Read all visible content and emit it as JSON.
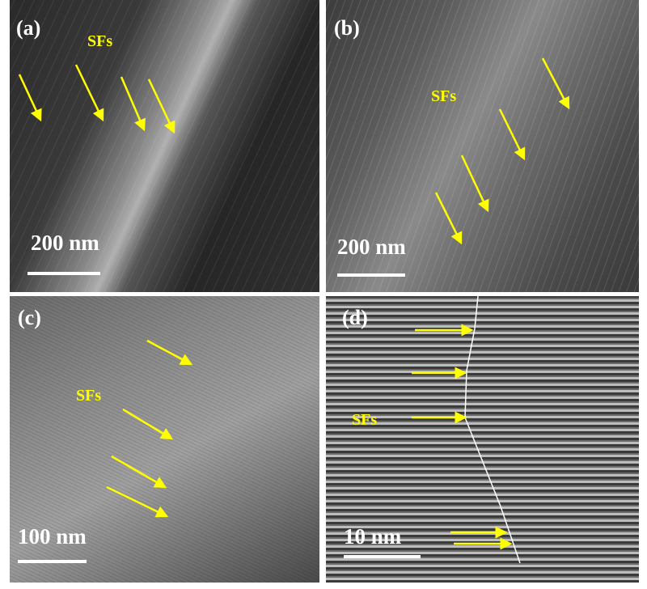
{
  "panels": [
    {
      "label": "(a)",
      "annotation": "SFs",
      "scale": "200 nm"
    },
    {
      "label": "(b)",
      "annotation": "SFs",
      "scale": "200 nm"
    },
    {
      "label": "(c)",
      "annotation": "SFs",
      "scale": "100 nm"
    },
    {
      "label": "(d)",
      "annotation": "SFs",
      "scale": "10 nm"
    }
  ],
  "colors": {
    "arrow": "#ffff00",
    "text": "#ffffff"
  }
}
